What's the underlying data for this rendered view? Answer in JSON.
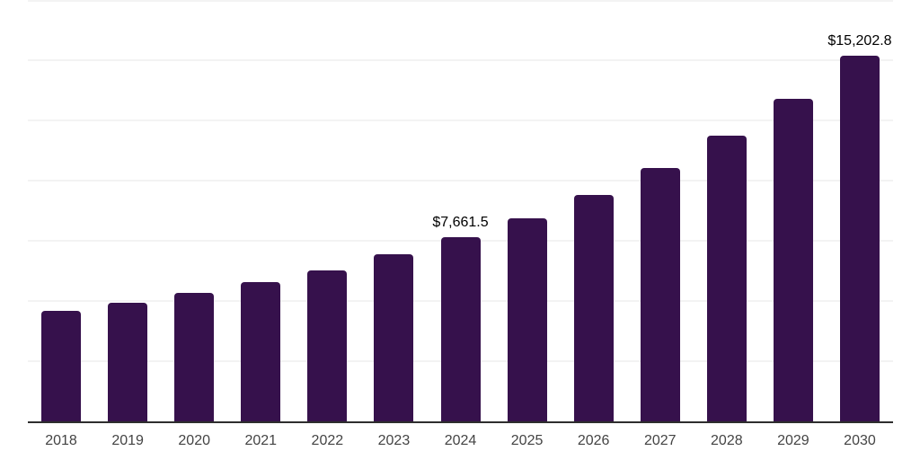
{
  "chart_data": {
    "type": "bar",
    "title": "",
    "xlabel": "",
    "ylabel": "",
    "categories": [
      "2018",
      "2019",
      "2020",
      "2021",
      "2022",
      "2023",
      "2024",
      "2025",
      "2026",
      "2027",
      "2028",
      "2029",
      "2030"
    ],
    "values": [
      4600,
      4930,
      5320,
      5780,
      6270,
      6930,
      7661.5,
      8450,
      9420,
      10540,
      11870,
      13380,
      15202.8
    ],
    "bar_labels": [
      "",
      "",
      "",
      "",
      "",
      "",
      "$7,661.5",
      "",
      "",
      "",
      "",
      "",
      "$15,202.8"
    ],
    "ylim": [
      0,
      17500
    ],
    "grid_step": 2500,
    "grid": "horizontal-only",
    "legend": "none",
    "colors": {
      "bar": "#36114c",
      "axis_line": "#2e2e2e",
      "gridline": "#f3f3f3",
      "tick_label": "#444444",
      "data_label": "#000000",
      "background": "#ffffff"
    }
  }
}
